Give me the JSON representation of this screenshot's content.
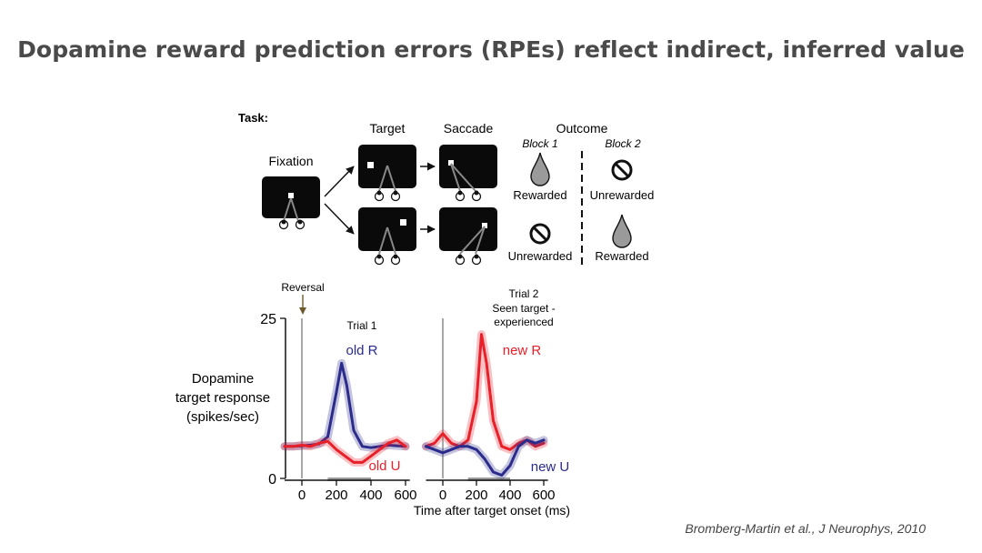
{
  "slide": {
    "title": "Dopamine reward prediction errors (RPEs) reflect indirect, inferred value",
    "citation": "Bromberg-Martin et al.,  J Neurophys, 2010"
  },
  "task": {
    "label": "Task:",
    "fixation_label": "Fixation",
    "target_label": "Target",
    "saccade_label": "Saccade",
    "outcome_label": "Outcome",
    "block1_label": "Block 1",
    "block2_label": "Block 2",
    "top_row": {
      "block1": "Rewarded",
      "block2": "Unrewarded"
    },
    "bottom_row": {
      "block1": "Unrewarded",
      "block2": "Rewarded"
    }
  },
  "chart_data": {
    "type": "line",
    "ylabel": [
      "Dopamine",
      "target response",
      "(spikes/sec)"
    ],
    "xlabel": "Time after target onset (ms)",
    "ylim": [
      0,
      25
    ],
    "yticks": [
      "0",
      "25"
    ],
    "xlim": [
      -100,
      650
    ],
    "xticks": [
      "0",
      "200",
      "400",
      "600"
    ],
    "reversal_label": "Reversal",
    "colors": {
      "blue": "#2b2b8c",
      "red": "#e8202a",
      "shade": "#9a9a9a"
    },
    "panels": [
      {
        "title": [
          "Trial 1"
        ],
        "series": [
          {
            "name": "old R",
            "color": "#2b2b8c",
            "x": [
              -100,
              -50,
              0,
              50,
              100,
              150,
              200,
              230,
              260,
              300,
              350,
              400,
              450,
              500,
              550,
              600
            ],
            "y": [
              5.0,
              5.0,
              5.1,
              5.2,
              5.4,
              6.5,
              13.5,
              18.0,
              14.5,
              7.5,
              5.0,
              4.8,
              5.0,
              5.2,
              5.1,
              5.0
            ]
          },
          {
            "name": "old U",
            "color": "#e8202a",
            "x": [
              -100,
              -50,
              0,
              50,
              100,
              150,
              200,
              250,
              300,
              350,
              400,
              450,
              500,
              550,
              600
            ],
            "y": [
              5.0,
              5.0,
              5.2,
              5.0,
              5.5,
              5.8,
              4.5,
              3.5,
              2.5,
              2.5,
              3.5,
              4.5,
              5.5,
              6.0,
              5.0
            ]
          }
        ]
      },
      {
        "title": [
          "Trial 2",
          "Seen target -",
          "experienced"
        ],
        "series": [
          {
            "name": "new R",
            "color": "#e8202a",
            "x": [
              -100,
              -50,
              0,
              50,
              100,
              150,
              200,
              230,
              260,
              300,
              350,
              400,
              450,
              500,
              550,
              600
            ],
            "y": [
              5.0,
              5.5,
              7.0,
              5.5,
              5.0,
              6.0,
              12.0,
              22.5,
              18.0,
              9.0,
              5.0,
              4.5,
              5.5,
              6.0,
              5.0,
              5.5
            ]
          },
          {
            "name": "new U",
            "color": "#2b2b8c",
            "x": [
              -100,
              -50,
              0,
              50,
              100,
              150,
              200,
              250,
              300,
              350,
              400,
              450,
              500,
              550,
              600
            ],
            "y": [
              5.0,
              4.5,
              4.0,
              4.5,
              5.0,
              5.0,
              4.5,
              3.0,
              1.0,
              0.5,
              2.0,
              5.0,
              6.0,
              5.5,
              6.0
            ]
          }
        ]
      }
    ]
  }
}
